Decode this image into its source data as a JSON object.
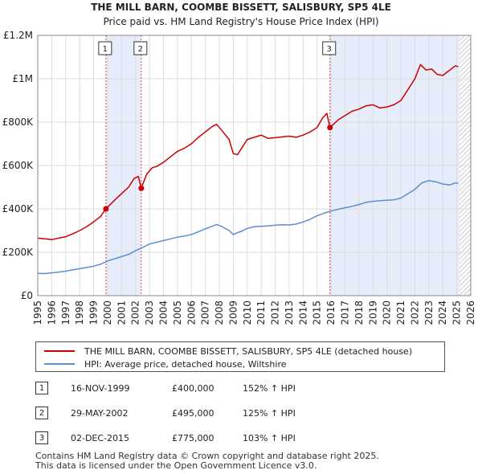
{
  "chart_data": {
    "type": "line",
    "title": "THE MILL BARN, COOMBE BISSETT, SALISBURY, SP5 4LE",
    "subtitle": "Price paid vs. HM Land Registry's House Price Index (HPI)",
    "xlabel": "",
    "ylabel": "",
    "xlim": [
      1995,
      2026
    ],
    "ylim": [
      0,
      1200000
    ],
    "x_ticks": [
      1995,
      1996,
      1997,
      1998,
      1999,
      2000,
      2001,
      2002,
      2003,
      2004,
      2005,
      2006,
      2007,
      2008,
      2009,
      2010,
      2011,
      2012,
      2013,
      2014,
      2015,
      2016,
      2017,
      2018,
      2019,
      2020,
      2021,
      2022,
      2023,
      2024,
      2025,
      2026
    ],
    "y_ticks": [
      {
        "value": 0,
        "label": "£0"
      },
      {
        "value": 200000,
        "label": "£200K"
      },
      {
        "value": 400000,
        "label": "£400K"
      },
      {
        "value": 600000,
        "label": "£600K"
      },
      {
        "value": 800000,
        "label": "£800K"
      },
      {
        "value": 1000000,
        "label": "£1M"
      },
      {
        "value": 1200000,
        "label": "£1.2M"
      }
    ],
    "grid": true,
    "series": [
      {
        "name": "THE MILL BARN, COOMBE BISSETT, SALISBURY, SP5 4LE (detached house)",
        "color": "#cc0000",
        "x": [
          1995.0,
          1995.5,
          1996.0,
          1996.5,
          1997.0,
          1997.5,
          1998.0,
          1998.5,
          1999.0,
          1999.5,
          1999.88,
          2000.5,
          2001.0,
          2001.5,
          2001.9,
          2002.2,
          2002.41,
          2002.8,
          2003.2,
          2003.5,
          2004.0,
          2004.5,
          2005.0,
          2005.5,
          2006.0,
          2006.5,
          2007.0,
          2007.5,
          2007.8,
          2008.2,
          2008.7,
          2009.0,
          2009.3,
          2009.7,
          2010.0,
          2010.5,
          2011.0,
          2011.5,
          2012.0,
          2012.5,
          2013.0,
          2013.5,
          2014.0,
          2014.5,
          2015.0,
          2015.4,
          2015.7,
          2015.92,
          2016.5,
          2017.0,
          2017.5,
          2018.0,
          2018.5,
          2019.0,
          2019.5,
          2020.0,
          2020.5,
          2021.0,
          2021.5,
          2022.0,
          2022.4,
          2022.8,
          2023.2,
          2023.6,
          2024.0,
          2024.5,
          2024.9,
          2025.1
        ],
        "values": [
          265000,
          262000,
          258000,
          265000,
          272000,
          285000,
          300000,
          318000,
          340000,
          365000,
          400000,
          440000,
          470000,
          500000,
          540000,
          550000,
          495000,
          560000,
          590000,
          595000,
          615000,
          640000,
          665000,
          680000,
          700000,
          730000,
          755000,
          780000,
          790000,
          760000,
          720000,
          655000,
          650000,
          690000,
          720000,
          730000,
          740000,
          725000,
          728000,
          732000,
          735000,
          730000,
          740000,
          755000,
          775000,
          820000,
          840000,
          775000,
          810000,
          830000,
          850000,
          860000,
          875000,
          880000,
          865000,
          870000,
          880000,
          900000,
          950000,
          1000000,
          1065000,
          1040000,
          1045000,
          1020000,
          1015000,
          1040000,
          1060000,
          1055000
        ]
      },
      {
        "name": "HPI: Average price, detached house, Wiltshire",
        "color": "#5b8fcf",
        "x": [
          1995.0,
          1995.5,
          1996.0,
          1996.5,
          1997.0,
          1997.5,
          1998.0,
          1998.5,
          1999.0,
          1999.5,
          2000.0,
          2000.5,
          2001.0,
          2001.5,
          2002.0,
          2002.5,
          2003.0,
          2003.5,
          2004.0,
          2004.5,
          2005.0,
          2005.5,
          2006.0,
          2006.5,
          2007.0,
          2007.5,
          2007.8,
          2008.2,
          2008.7,
          2009.0,
          2009.3,
          2009.7,
          2010.0,
          2010.5,
          2011.0,
          2011.5,
          2012.0,
          2012.5,
          2013.0,
          2013.5,
          2014.0,
          2014.5,
          2015.0,
          2015.5,
          2016.0,
          2016.5,
          2017.0,
          2017.5,
          2018.0,
          2018.5,
          2019.0,
          2019.5,
          2020.0,
          2020.5,
          2021.0,
          2021.5,
          2022.0,
          2022.5,
          2023.0,
          2023.5,
          2024.0,
          2024.5,
          2024.9,
          2025.1
        ],
        "values": [
          103000,
          102000,
          105000,
          108000,
          113000,
          119000,
          124000,
          130000,
          136000,
          145000,
          160000,
          170000,
          180000,
          190000,
          207000,
          222000,
          238000,
          246000,
          254000,
          262000,
          270000,
          275000,
          282000,
          295000,
          308000,
          320000,
          328000,
          318000,
          300000,
          282000,
          290000,
          300000,
          310000,
          318000,
          320000,
          322000,
          325000,
          327000,
          326000,
          330000,
          340000,
          352000,
          368000,
          380000,
          390000,
          398000,
          405000,
          412000,
          420000,
          430000,
          435000,
          438000,
          440000,
          442000,
          450000,
          470000,
          490000,
          520000,
          530000,
          525000,
          515000,
          510000,
          520000,
          518000
        ]
      }
    ],
    "transactions": [
      {
        "label": "1",
        "x": 1999.88,
        "value": 400000,
        "date": "16-NOV-1999",
        "price": "£400,000",
        "hpi": "152% ↑ HPI"
      },
      {
        "label": "2",
        "x": 2002.41,
        "value": 495000,
        "date": "29-MAY-2002",
        "price": "£495,000",
        "hpi": "125% ↑ HPI"
      },
      {
        "label": "3",
        "x": 2015.92,
        "value": 775000,
        "date": "02-DEC-2015",
        "price": "£775,000",
        "hpi": "103% ↑ HPI"
      }
    ],
    "shaded_periods": [
      [
        1999.88,
        2002.41
      ],
      [
        2015.92,
        2025.2
      ]
    ],
    "hatched_from": 2025.2
  },
  "header": {
    "title": "THE MILL BARN, COOMBE BISSETT, SALISBURY, SP5 4LE",
    "subtitle": "Price paid vs. HM Land Registry's House Price Index (HPI)"
  },
  "legend": {
    "property_label": "THE MILL BARN, COOMBE BISSETT, SALISBURY, SP5 4LE (detached house)",
    "hpi_label": "HPI: Average price, detached house, Wiltshire",
    "property_color": "#cc0000",
    "hpi_color": "#5b8fcf"
  },
  "footer": {
    "line1": "Contains HM Land Registry data © Crown copyright and database right 2025.",
    "line2": "This data is licensed under the Open Government Licence v3.0."
  }
}
